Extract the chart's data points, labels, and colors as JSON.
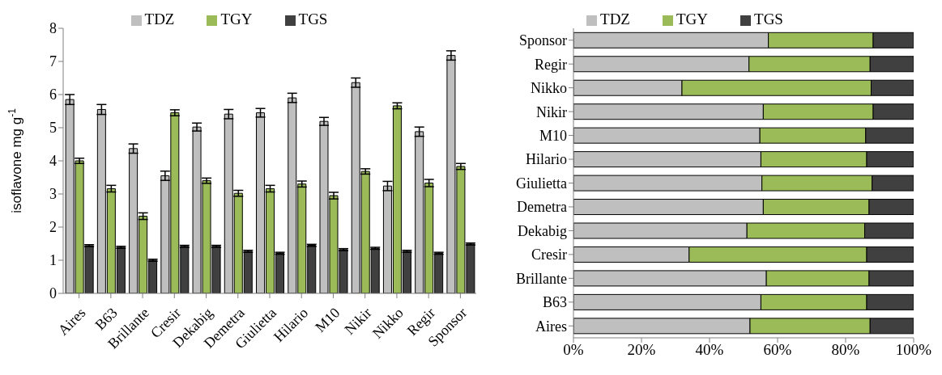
{
  "chart_data": [
    {
      "type": "bar",
      "ylabel": "isoflavone mg g$^{-1}$",
      "categories": [
        "Aires",
        "B63",
        "Brillante",
        "Cresir",
        "Dekabig",
        "Demetra",
        "Giulietta",
        "Hilario",
        "M10",
        "Nikir",
        "Nikko",
        "Regir",
        "Sponsor"
      ],
      "series": [
        {
          "name": "TDZ",
          "color": "#bfbfbf",
          "values": [
            5.85,
            5.55,
            4.37,
            3.55,
            5.02,
            5.41,
            5.45,
            5.9,
            5.19,
            6.36,
            3.24,
            4.88,
            7.18
          ],
          "errors": [
            0.15,
            0.15,
            0.14,
            0.14,
            0.12,
            0.14,
            0.13,
            0.14,
            0.12,
            0.14,
            0.14,
            0.14,
            0.14
          ]
        },
        {
          "name": "TGY",
          "color": "#9bbb59",
          "values": [
            4.0,
            3.16,
            2.33,
            5.45,
            3.4,
            3.02,
            3.16,
            3.3,
            2.95,
            3.68,
            5.66,
            3.33,
            3.83
          ],
          "errors": [
            0.08,
            0.1,
            0.1,
            0.09,
            0.08,
            0.09,
            0.1,
            0.09,
            0.1,
            0.08,
            0.09,
            0.11,
            0.09
          ]
        },
        {
          "name": "TGS",
          "color": "#404040",
          "values": [
            1.44,
            1.39,
            1.0,
            1.42,
            1.42,
            1.27,
            1.21,
            1.45,
            1.32,
            1.36,
            1.27,
            1.21,
            1.49
          ],
          "errors": [
            0.03,
            0.03,
            0.03,
            0.03,
            0.03,
            0.03,
            0.03,
            0.03,
            0.03,
            0.03,
            0.03,
            0.03,
            0.03
          ]
        }
      ],
      "ylim": [
        0,
        8
      ],
      "yticks": [
        0,
        1,
        2,
        3,
        4,
        5,
        6,
        7,
        8
      ],
      "legend": "top",
      "grid": false
    },
    {
      "type": "bar",
      "orientation": "horizontal",
      "stacked": true,
      "categories": [
        "Sponsor",
        "Regir",
        "Nikko",
        "Nikir",
        "M10",
        "Hilario",
        "Giulietta",
        "Demetra",
        "Dekabig",
        "Cresir",
        "Brillante",
        "B63",
        "Aires"
      ],
      "series": [
        {
          "name": "TDZ",
          "color": "#bfbfbf",
          "values": [
            57.3,
            51.6,
            31.9,
            55.8,
            54.8,
            55.1,
            55.4,
            55.8,
            51.0,
            34.0,
            56.7,
            55.1,
            51.9
          ]
        },
        {
          "name": "TGY",
          "color": "#9bbb59",
          "values": [
            30.8,
            35.6,
            55.6,
            32.3,
            31.1,
            31.1,
            32.4,
            31.1,
            34.6,
            52.2,
            30.2,
            31.1,
            35.3
          ]
        },
        {
          "name": "TGS",
          "color": "#404040",
          "values": [
            11.9,
            12.8,
            12.5,
            11.9,
            14.1,
            13.8,
            12.2,
            13.1,
            14.4,
            13.8,
            13.1,
            13.8,
            12.8
          ]
        }
      ],
      "xlim": [
        0,
        100
      ],
      "xticks": [
        {
          "value": 0,
          "label": "0%"
        },
        {
          "value": 20,
          "label": "20%"
        },
        {
          "value": 40,
          "label": "40%"
        },
        {
          "value": 60,
          "label": "60%"
        },
        {
          "value": 80,
          "label": "80%"
        },
        {
          "value": 100,
          "label": "100%"
        }
      ],
      "legend": "top",
      "grid": false
    }
  ]
}
